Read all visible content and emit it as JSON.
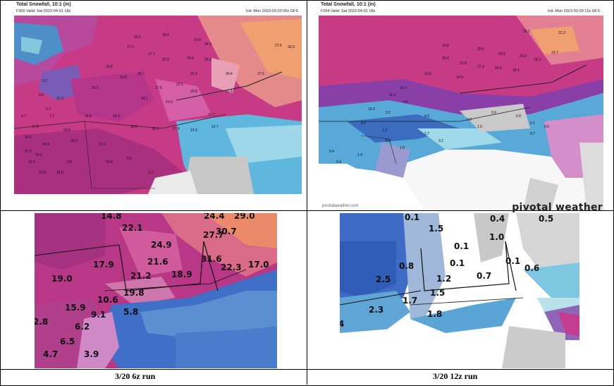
{
  "top_left": {
    "title": "Total Snowfall, 10:1 (in)",
    "valid": "F300 Valid: Sat 2023-04-01 18z",
    "init": "Init: Mon 2023-03-20 06z GFS",
    "labels": [
      "20.4",
      "16.5",
      "17.7",
      "19.8",
      "24.0",
      "27.6",
      "33.9",
      "17.3",
      "22.5",
      "24.6",
      "25.3",
      "22.3",
      "30.4",
      "27.5",
      "18.7",
      "13.6",
      "15.8",
      "22.5",
      "17.5",
      "20.8",
      "27.4",
      "16.1",
      "19.1",
      "21.6",
      "12.2",
      "27.7",
      "14.8",
      "16.3",
      "18.2",
      "15.3",
      "17.6",
      "13.9",
      "19.7",
      "10.5",
      "16.0",
      "14.4",
      "13.3",
      "11.9",
      "14.6",
      "6.7",
      "7.1",
      "5.5",
      "15.0",
      "12.9",
      "9.0",
      "14.8",
      "13.0",
      "15.0",
      "6.9",
      "3.2",
      "6.7",
      "17.8",
      "5.2"
    ]
  },
  "top_right": {
    "title": "Total Snowfall, 10:1 (in)",
    "valid": "F294 Valid: Sat 2023-04-01 18z",
    "init": "Init: Mon 2023-03-20 12z GFS",
    "labels": [
      "29.2",
      "22.3",
      "19.6",
      "26.5",
      "20.8",
      "23.9",
      "18.3",
      "19.7",
      "25.9",
      "21.8",
      "17.2",
      "20.6",
      "18.4",
      "12.5",
      "14.9",
      "10.2",
      "11.2",
      "5.5",
      "16.0",
      "9.2",
      "3.1",
      "4.5",
      "1.3",
      "0.4",
      "5.5",
      "1.0",
      "2.7",
      "3.2",
      "0.8",
      "0.9",
      "1.0",
      "0.9",
      "0.1",
      "0.7",
      "0.6",
      "0.4",
      "1.4"
    ],
    "credit": "pivotalweather.com",
    "brand": "pivotal weather"
  },
  "bottom_left": {
    "values": [
      "14.8",
      "22.1",
      "24.4",
      "29.0",
      "27.7",
      "30.7",
      "24.9",
      "17.9",
      "21.6",
      "31.6",
      "19.0",
      "21.2",
      "18.9",
      "22.3",
      "17.0",
      "19.8",
      "10.6",
      "15.9",
      "9.1",
      "5.8",
      "2.8",
      "6.2",
      "6.5",
      "4.7",
      "3.9"
    ]
  },
  "bottom_right": {
    "values": [
      "0.1",
      "1.5",
      "0.4",
      "0.5",
      "1.0",
      "0.1",
      "0.8",
      "0.1",
      "0.1",
      "0.6",
      "2.5",
      "1.2",
      "0.7",
      "1.5",
      "1.7",
      "2.3",
      "1.8",
      "4"
    ]
  },
  "captions": {
    "left": "3/20 6z run",
    "right": "3/20 12z run"
  }
}
